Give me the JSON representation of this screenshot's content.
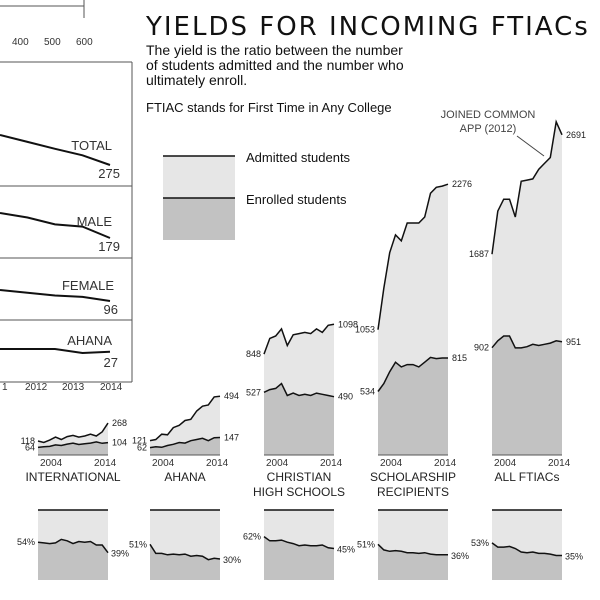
{
  "header": {
    "title": "YIELDS FOR INCOMING FTIACs",
    "subtitle_lines": [
      "The yield is the ratio between the number",
      "of students admitted and the number who",
      "ultimately enroll."
    ],
    "note": "FTIAC stands for First Time in Any College"
  },
  "legend": {
    "admitted": "Admitted students",
    "enrolled": "Enrolled students"
  },
  "annotation": {
    "lines": [
      "JOINED COMMON",
      "APP (2012)"
    ]
  },
  "colors": {
    "admitted_fill": "#e6e6e6",
    "enrolled_fill": "#c2c2c2",
    "line": "#111111",
    "frame": "#555555"
  },
  "chart_data": [
    {
      "id": "top-left-lines",
      "type": "line",
      "x_ticks": [
        "400",
        "500",
        "600"
      ],
      "year_ticks": [
        "1",
        "2012",
        "2013",
        "2014"
      ],
      "x": [
        2010,
        2011,
        2012,
        2013,
        2014
      ],
      "series": [
        {
          "name": "TOTAL",
          "end_label": "275",
          "values": [
            340,
            325,
            310,
            296,
            275
          ]
        },
        {
          "name": "MALE",
          "end_label": "179",
          "values": [
            190,
            188,
            185,
            184,
            179
          ]
        },
        {
          "name": "FEMALE",
          "end_label": "96",
          "values": [
            104,
            102,
            100,
            99,
            96
          ]
        },
        {
          "name": "AHANA",
          "end_label": "27",
          "values": [
            29,
            29,
            29,
            26,
            27
          ]
        }
      ]
    },
    {
      "id": "international",
      "type": "area",
      "title_lines": [
        "INTERNATIONAL"
      ],
      "x_ticks": [
        "2004",
        "2014"
      ],
      "x": [
        2002,
        2003,
        2004,
        2005,
        2006,
        2007,
        2008,
        2009,
        2010,
        2011,
        2012,
        2013,
        2014
      ],
      "ylim": [
        0,
        2800
      ],
      "admitted": [
        118,
        105,
        125,
        150,
        130,
        155,
        165,
        150,
        160,
        175,
        160,
        195,
        268
      ],
      "enrolled": [
        64,
        70,
        72,
        85,
        80,
        92,
        100,
        88,
        95,
        100,
        110,
        98,
        104
      ],
      "labels": {
        "admitted_start": "118",
        "enrolled_start": "64",
        "admitted_end": "268",
        "enrolled_end": "104"
      }
    },
    {
      "id": "ahana",
      "type": "area",
      "title_lines": [
        "AHANA"
      ],
      "x_ticks": [
        "2004",
        "2014"
      ],
      "x": [
        2002,
        2003,
        2004,
        2005,
        2006,
        2007,
        2008,
        2009,
        2010,
        2011,
        2012,
        2013,
        2014
      ],
      "ylim": [
        0,
        2800
      ],
      "admitted": [
        121,
        130,
        175,
        170,
        230,
        250,
        290,
        300,
        370,
        410,
        420,
        488,
        494
      ],
      "enrolled": [
        62,
        70,
        65,
        80,
        90,
        105,
        100,
        120,
        130,
        140,
        120,
        145,
        147
      ],
      "labels": {
        "admitted_start": "121",
        "enrolled_start": "62",
        "admitted_end": "494",
        "enrolled_end": "147"
      }
    },
    {
      "id": "christian-high-schools",
      "type": "area",
      "title_lines": [
        "CHRISTIAN",
        "HIGH SCHOOLS"
      ],
      "x_ticks": [
        "2004",
        "2014"
      ],
      "x": [
        2002,
        2003,
        2004,
        2005,
        2006,
        2007,
        2008,
        2009,
        2010,
        2011,
        2012,
        2013,
        2014
      ],
      "ylim": [
        0,
        2800
      ],
      "admitted": [
        848,
        980,
        1000,
        1060,
        920,
        1010,
        1020,
        1030,
        1020,
        1060,
        1030,
        1090,
        1098
      ],
      "enrolled": [
        527,
        550,
        560,
        600,
        500,
        520,
        500,
        510,
        500,
        520,
        510,
        500,
        490
      ],
      "labels": {
        "admitted_start": "848",
        "enrolled_start": "527",
        "admitted_end": "1098",
        "enrolled_end": "490"
      }
    },
    {
      "id": "scholarship-recipients",
      "type": "area",
      "title_lines": [
        "SCHOLARSHIP",
        "RECIPIENTS"
      ],
      "x_ticks": [
        "2004",
        "2014"
      ],
      "x": [
        2002,
        2003,
        2004,
        2005,
        2006,
        2007,
        2008,
        2009,
        2010,
        2011,
        2012,
        2013,
        2014
      ],
      "ylim": [
        0,
        2800
      ],
      "admitted": [
        1053,
        1400,
        1700,
        1850,
        1800,
        1950,
        1950,
        1950,
        2000,
        2200,
        2250,
        2260,
        2276
      ],
      "enrolled": [
        534,
        600,
        700,
        780,
        740,
        760,
        760,
        740,
        780,
        820,
        810,
        815,
        815
      ],
      "labels": {
        "admitted_start": "1053",
        "enrolled_start": "534",
        "admitted_end": "2276",
        "enrolled_end": "815"
      }
    },
    {
      "id": "all-ftiacs",
      "type": "area",
      "title_lines": [
        "ALL FTIACs"
      ],
      "x_ticks": [
        "2004",
        "2014"
      ],
      "x": [
        2002,
        2003,
        2004,
        2005,
        2006,
        2007,
        2008,
        2009,
        2010,
        2011,
        2012,
        2013,
        2014
      ],
      "ylim": [
        0,
        2800
      ],
      "admitted": [
        1687,
        2050,
        2150,
        2150,
        2000,
        2300,
        2310,
        2320,
        2400,
        2450,
        2500,
        2800,
        2691
      ],
      "enrolled": [
        902,
        960,
        1000,
        1000,
        900,
        900,
        910,
        930,
        920,
        930,
        940,
        960,
        951
      ],
      "labels": {
        "admitted_start": "1687",
        "enrolled_start": "902",
        "admitted_end": "2691",
        "enrolled_end": "951"
      }
    },
    {
      "id": "yield-international",
      "type": "area",
      "ylim": [
        0,
        100
      ],
      "x": [
        2002,
        2003,
        2004,
        2005,
        2006,
        2007,
        2008,
        2009,
        2010,
        2011,
        2012,
        2013,
        2014
      ],
      "values": [
        54,
        53,
        52,
        53,
        58,
        56,
        52,
        55,
        54,
        55,
        50,
        50,
        39
      ],
      "labels": {
        "start": "54%",
        "end": "39%"
      }
    },
    {
      "id": "yield-ahana",
      "type": "area",
      "ylim": [
        0,
        100
      ],
      "x": [
        2002,
        2003,
        2004,
        2005,
        2006,
        2007,
        2008,
        2009,
        2010,
        2011,
        2012,
        2013,
        2014
      ],
      "values": [
        51,
        38,
        38,
        36,
        37,
        36,
        37,
        34,
        35,
        34,
        29,
        31,
        30
      ],
      "labels": {
        "start": "51%",
        "end": "30%"
      }
    },
    {
      "id": "yield-christian",
      "type": "area",
      "ylim": [
        0,
        100
      ],
      "x": [
        2002,
        2003,
        2004,
        2005,
        2006,
        2007,
        2008,
        2009,
        2010,
        2011,
        2012,
        2013,
        2014
      ],
      "values": [
        62,
        56,
        56,
        57,
        54,
        52,
        49,
        50,
        49,
        49,
        50,
        46,
        45
      ],
      "labels": {
        "start": "62%",
        "end": "45%"
      }
    },
    {
      "id": "yield-scholarship",
      "type": "area",
      "ylim": [
        0,
        100
      ],
      "x": [
        2002,
        2003,
        2004,
        2005,
        2006,
        2007,
        2008,
        2009,
        2010,
        2011,
        2012,
        2013,
        2014
      ],
      "values": [
        51,
        43,
        41,
        42,
        41,
        39,
        39,
        38,
        39,
        37,
        36,
        36,
        36
      ],
      "labels": {
        "start": "51%",
        "end": "36%"
      }
    },
    {
      "id": "yield-all",
      "type": "area",
      "ylim": [
        0,
        100
      ],
      "x": [
        2002,
        2003,
        2004,
        2005,
        2006,
        2007,
        2008,
        2009,
        2010,
        2011,
        2012,
        2013,
        2014
      ],
      "values": [
        53,
        47,
        47,
        48,
        45,
        40,
        39,
        40,
        38,
        38,
        37,
        35,
        35
      ],
      "labels": {
        "start": "53%",
        "end": "35%"
      }
    }
  ]
}
